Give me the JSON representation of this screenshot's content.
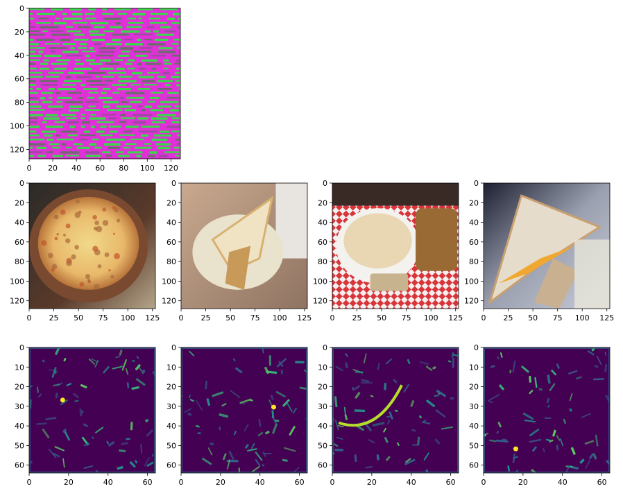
{
  "chart_data": [
    {
      "type": "image",
      "row": 0,
      "content": "filter-visualization",
      "colors": [
        "#e030d8",
        "#38d848",
        "#9a4aa0",
        "#6c6c6c"
      ],
      "xlim": [
        0,
        128
      ],
      "ylim": [
        128,
        0
      ],
      "xticks": [
        0,
        20,
        40,
        60,
        80,
        100,
        120
      ],
      "yticks": [
        0,
        20,
        40,
        60,
        80,
        100,
        120
      ],
      "xticklabels": [
        "0",
        "20",
        "40",
        "60",
        "80",
        "100",
        "120"
      ],
      "yticklabels": [
        "0",
        "20",
        "40",
        "60",
        "80",
        "100",
        "120"
      ]
    },
    {
      "type": "image",
      "row": 1,
      "content": "photo-pizza",
      "xlim": [
        0,
        128
      ],
      "ylim": [
        128,
        0
      ],
      "xticks": [
        0,
        25,
        50,
        75,
        100,
        125
      ],
      "yticks": [
        0,
        20,
        40,
        60,
        80,
        100,
        120
      ],
      "xticklabels": [
        "0",
        "25",
        "50",
        "75",
        "100",
        "125"
      ],
      "yticklabels": [
        "0",
        "20",
        "40",
        "60",
        "80",
        "100",
        "120"
      ]
    },
    {
      "type": "image",
      "row": 1,
      "content": "photo-sandwich",
      "xlim": [
        0,
        128
      ],
      "ylim": [
        128,
        0
      ],
      "xticks": [
        0,
        25,
        50,
        75,
        100,
        125
      ],
      "yticks": [
        0,
        20,
        40,
        60,
        80,
        100,
        120
      ],
      "xticklabels": [
        "0",
        "25",
        "50",
        "75",
        "100",
        "125"
      ],
      "yticklabels": [
        "0",
        "20",
        "40",
        "60",
        "80",
        "100",
        "120"
      ]
    },
    {
      "type": "image",
      "row": 1,
      "content": "photo-soup-and-sandwich",
      "xlim": [
        0,
        128
      ],
      "ylim": [
        128,
        0
      ],
      "xticks": [
        0,
        25,
        50,
        75,
        100,
        125
      ],
      "yticks": [
        0,
        20,
        40,
        60,
        80,
        100,
        120
      ],
      "xticklabels": [
        "0",
        "25",
        "50",
        "75",
        "100",
        "125"
      ],
      "yticklabels": [
        "0",
        "20",
        "40",
        "60",
        "80",
        "100",
        "120"
      ]
    },
    {
      "type": "image",
      "row": 1,
      "content": "photo-grilled-cheese",
      "xlim": [
        0,
        128
      ],
      "ylim": [
        128,
        0
      ],
      "xticks": [
        0,
        25,
        50,
        75,
        100,
        125
      ],
      "yticks": [
        0,
        20,
        40,
        60,
        80,
        100,
        120
      ],
      "xticklabels": [
        "0",
        "25",
        "50",
        "75",
        "100",
        "125"
      ],
      "yticklabels": [
        "0",
        "20",
        "40",
        "60",
        "80",
        "100",
        "120"
      ]
    },
    {
      "type": "heatmap",
      "row": 2,
      "content": "feature-map-pizza",
      "colormap": "viridis",
      "xlim": [
        0,
        64
      ],
      "ylim": [
        64,
        0
      ],
      "xticks": [
        0,
        20,
        40,
        60
      ],
      "yticks": [
        0,
        10,
        20,
        30,
        40,
        50,
        60
      ],
      "xticklabels": [
        "0",
        "20",
        "40",
        "60"
      ],
      "yticklabels": [
        "0",
        "10",
        "20",
        "30",
        "40",
        "50",
        "60"
      ]
    },
    {
      "type": "heatmap",
      "row": 2,
      "content": "feature-map-sandwich",
      "colormap": "viridis",
      "xlim": [
        0,
        64
      ],
      "ylim": [
        64,
        0
      ],
      "xticks": [
        0,
        20,
        40,
        60
      ],
      "yticks": [
        0,
        10,
        20,
        30,
        40,
        50,
        60
      ],
      "xticklabels": [
        "0",
        "20",
        "40",
        "60"
      ],
      "yticklabels": [
        "0",
        "10",
        "20",
        "30",
        "40",
        "50",
        "60"
      ]
    },
    {
      "type": "heatmap",
      "row": 2,
      "content": "feature-map-soup-and-sandwich",
      "colormap": "viridis",
      "xlim": [
        0,
        64
      ],
      "ylim": [
        64,
        0
      ],
      "xticks": [
        0,
        20,
        40,
        60
      ],
      "yticks": [
        0,
        10,
        20,
        30,
        40,
        50,
        60
      ],
      "xticklabels": [
        "0",
        "20",
        "40",
        "60"
      ],
      "yticklabels": [
        "0",
        "10",
        "20",
        "30",
        "40",
        "50",
        "60"
      ]
    },
    {
      "type": "heatmap",
      "row": 2,
      "content": "feature-map-grilled-cheese",
      "colormap": "viridis",
      "xlim": [
        0,
        64
      ],
      "ylim": [
        64,
        0
      ],
      "xticks": [
        0,
        20,
        40,
        60
      ],
      "yticks": [
        0,
        10,
        20,
        30,
        40,
        50,
        60
      ],
      "xticklabels": [
        "0",
        "20",
        "40",
        "60"
      ],
      "yticklabels": [
        "0",
        "10",
        "20",
        "30",
        "40",
        "50",
        "60"
      ]
    }
  ]
}
